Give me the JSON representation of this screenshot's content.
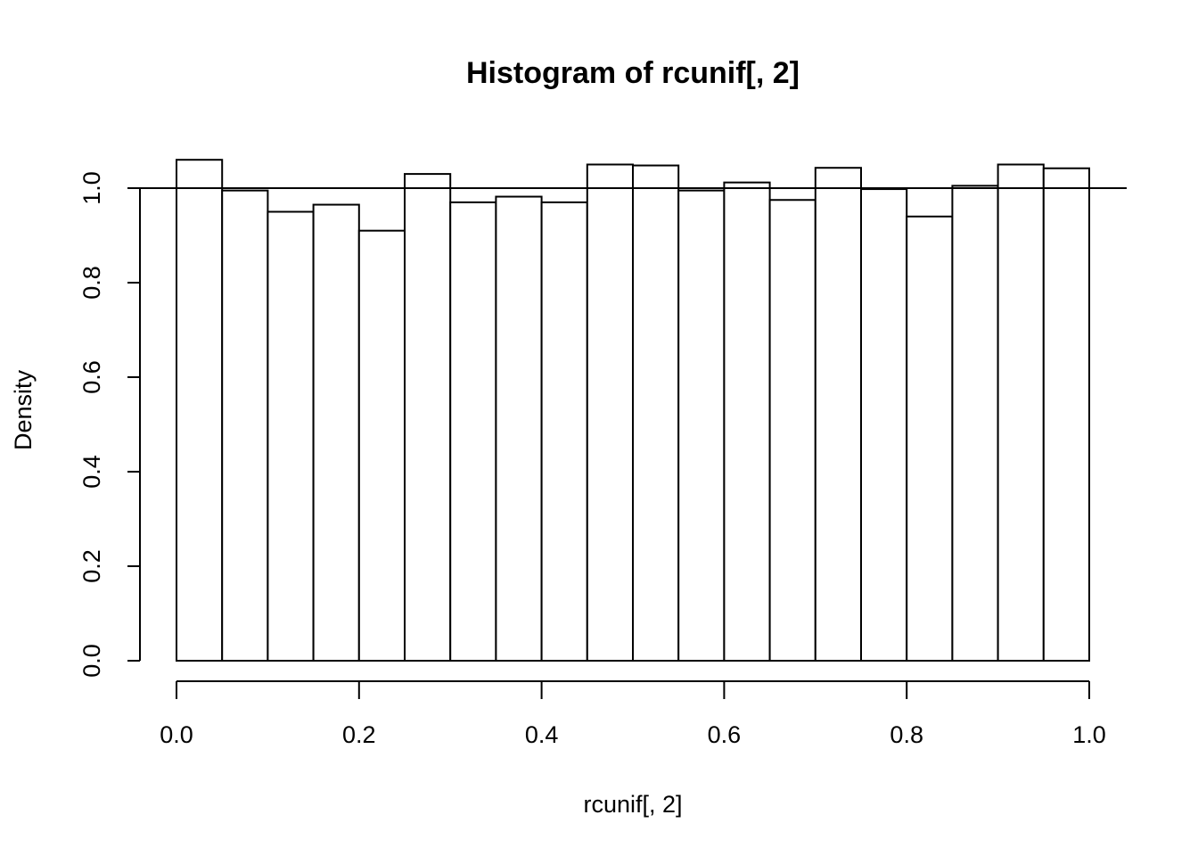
{
  "chart_data": {
    "type": "bar",
    "title": "Histogram of rcunif[, 2]",
    "xlabel": "rcunif[, 2]",
    "ylabel": "Density",
    "xlim": [
      0.0,
      1.0
    ],
    "ylim": [
      0.0,
      1.06
    ],
    "x_ticks": [
      "0.0",
      "0.2",
      "0.4",
      "0.6",
      "0.8",
      "1.0"
    ],
    "y_ticks": [
      "0.0",
      "0.2",
      "0.4",
      "0.6",
      "0.8",
      "1.0"
    ],
    "bin_width": 0.05,
    "bin_starts": [
      0.0,
      0.05,
      0.1,
      0.15,
      0.2,
      0.25,
      0.3,
      0.35,
      0.4,
      0.45,
      0.5,
      0.55,
      0.6,
      0.65,
      0.7,
      0.75,
      0.8,
      0.85,
      0.9,
      0.95
    ],
    "values": [
      1.06,
      0.995,
      0.95,
      0.965,
      0.91,
      1.03,
      0.97,
      0.982,
      0.97,
      1.05,
      1.048,
      0.995,
      1.012,
      0.975,
      1.043,
      0.998,
      0.94,
      1.005,
      1.05,
      1.042
    ],
    "reference_line_y": 1.0,
    "grid": false
  }
}
